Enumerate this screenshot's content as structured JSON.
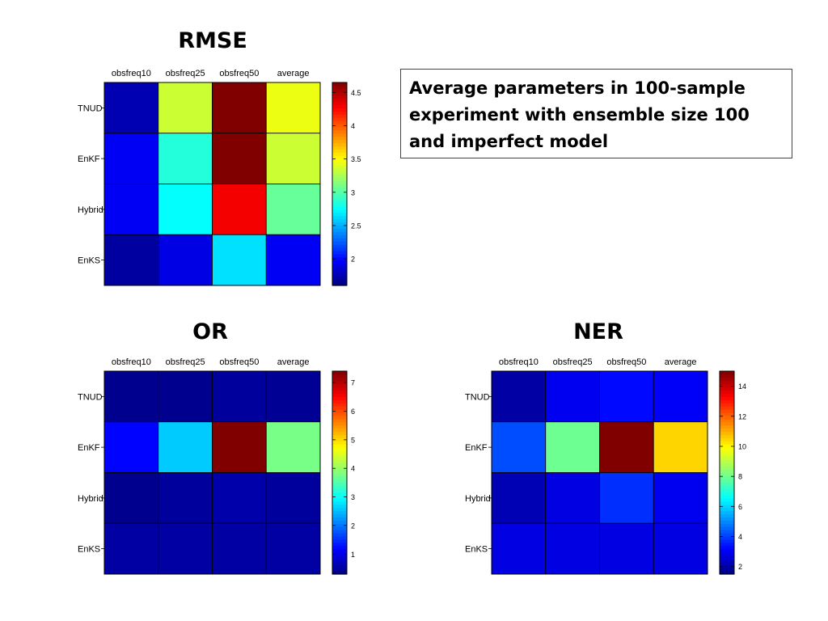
{
  "note": {
    "text": "Average parameters in 100-sample experiment with ensemble size 100 and imperfect model"
  },
  "chart_data": [
    {
      "type": "heatmap",
      "title": "RMSE",
      "columns": [
        "obsfreq10",
        "obsfreq25",
        "obsfreq50",
        "average"
      ],
      "rows": [
        "TNUD",
        "EnKF",
        "Hybrid",
        "EnKS"
      ],
      "values": [
        [
          1.75,
          3.35,
          4.65,
          3.45
        ],
        [
          1.95,
          2.85,
          4.65,
          3.35
        ],
        [
          1.95,
          2.75,
          4.3,
          3.05
        ],
        [
          1.7,
          1.9,
          2.65,
          1.95
        ]
      ],
      "colorbar": {
        "min": 1.6,
        "max": 4.65,
        "ticks": [
          2,
          2.5,
          3,
          3.5,
          4,
          4.5
        ]
      },
      "colormap": "jet"
    },
    {
      "type": "heatmap",
      "title": "OR",
      "columns": [
        "obsfreq10",
        "obsfreq25",
        "obsfreq50",
        "average"
      ],
      "rows": [
        "TNUD",
        "EnKF",
        "Hybrid",
        "EnKS"
      ],
      "values": [
        [
          0.4,
          0.4,
          0.5,
          0.45
        ],
        [
          1.2,
          2.6,
          7.4,
          3.8
        ],
        [
          0.4,
          0.5,
          0.6,
          0.5
        ],
        [
          0.55,
          0.55,
          0.55,
          0.55
        ]
      ],
      "colorbar": {
        "min": 0.3,
        "max": 7.4,
        "ticks": [
          1,
          2,
          3,
          4,
          5,
          6,
          7
        ]
      },
      "colormap": "jet"
    },
    {
      "type": "heatmap",
      "title": "NER",
      "columns": [
        "obsfreq10",
        "obsfreq25",
        "obsfreq50",
        "average"
      ],
      "rows": [
        "TNUD",
        "EnKF",
        "Hybrid",
        "EnKS"
      ],
      "values": [
        [
          2.0,
          3.0,
          3.3,
          3.1
        ],
        [
          4.2,
          8.0,
          15.0,
          10.5
        ],
        [
          2.2,
          2.8,
          3.8,
          3.0
        ],
        [
          2.8,
          2.8,
          2.8,
          2.8
        ]
      ],
      "colorbar": {
        "min": 1.5,
        "max": 15.0,
        "ticks": [
          2,
          4,
          6,
          8,
          10,
          12,
          14
        ]
      },
      "colormap": "jet"
    }
  ]
}
